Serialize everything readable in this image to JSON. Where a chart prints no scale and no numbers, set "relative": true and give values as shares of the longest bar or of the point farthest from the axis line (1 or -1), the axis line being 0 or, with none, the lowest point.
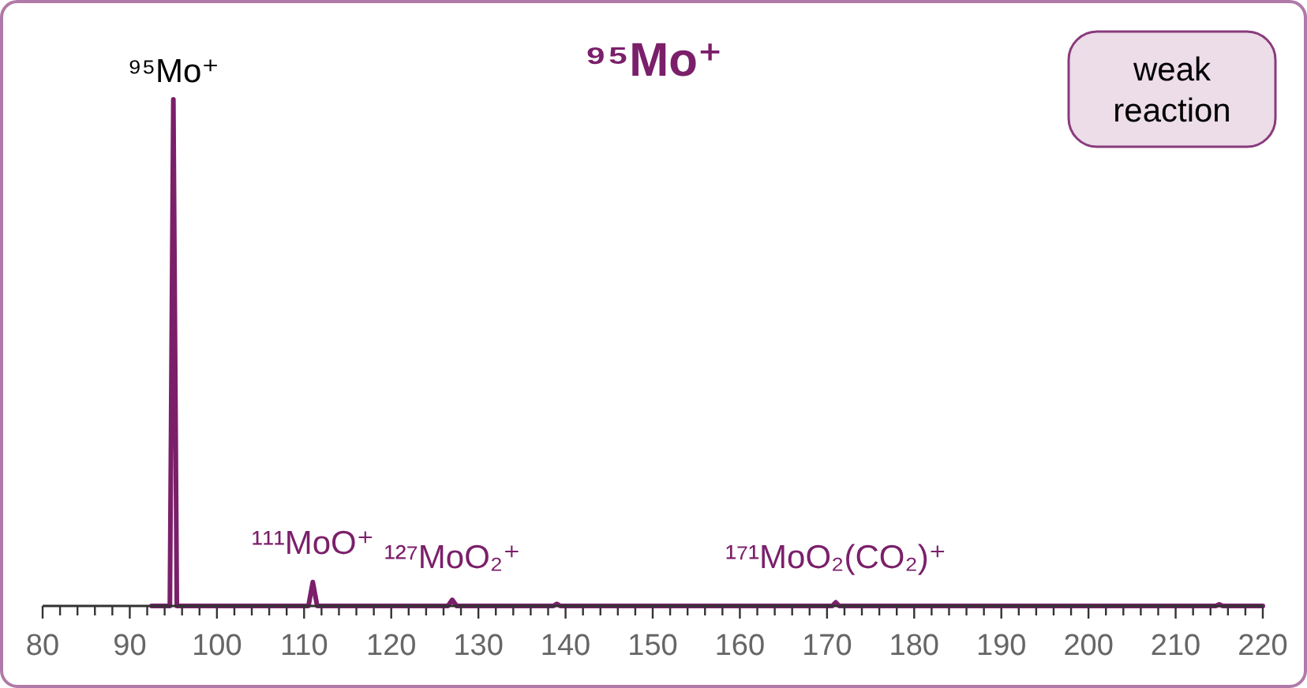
{
  "chart_data": {
    "type": "line",
    "title": "⁹⁵Mo⁺",
    "relative": true,
    "x": [
      92.5,
      94.6,
      95,
      95.4,
      110.5,
      111,
      111.5,
      126.5,
      127,
      127.5,
      138.6,
      139,
      139.4,
      170.6,
      171,
      171.4,
      214.6,
      215,
      215.4,
      220
    ],
    "series": [
      {
        "color": "#7b1f6a",
        "values": [
          0,
          0,
          1,
          0,
          0,
          0.047,
          0,
          0,
          0.012,
          0,
          0,
          0.004,
          0,
          0,
          0.007,
          0,
          0,
          0.003,
          0,
          0
        ]
      }
    ],
    "xlim": [
      80,
      220
    ],
    "xticks": [
      80,
      {
        "value": 82,
        "label": null
      },
      {
        "value": 84,
        "label": null
      },
      {
        "value": 86,
        "label": null
      },
      {
        "value": 88,
        "label": null
      },
      90,
      {
        "value": 92,
        "label": null
      },
      {
        "value": 94,
        "label": null
      },
      {
        "value": 96,
        "label": null
      },
      {
        "value": 98,
        "label": null
      },
      100,
      {
        "value": 102,
        "label": null
      },
      {
        "value": 104,
        "label": null
      },
      {
        "value": 106,
        "label": null
      },
      {
        "value": 108,
        "label": null
      },
      110,
      {
        "value": 112,
        "label": null
      },
      {
        "value": 114,
        "label": null
      },
      {
        "value": 116,
        "label": null
      },
      {
        "value": 118,
        "label": null
      },
      120,
      {
        "value": 122,
        "label": null
      },
      {
        "value": 124,
        "label": null
      },
      {
        "value": 126,
        "label": null
      },
      {
        "value": 128,
        "label": null
      },
      130,
      {
        "value": 132,
        "label": null
      },
      {
        "value": 134,
        "label": null
      },
      {
        "value": 136,
        "label": null
      },
      {
        "value": 138,
        "label": null
      },
      140,
      {
        "value": 142,
        "label": null
      },
      {
        "value": 144,
        "label": null
      },
      {
        "value": 146,
        "label": null
      },
      {
        "value": 148,
        "label": null
      },
      150,
      {
        "value": 152,
        "label": null
      },
      {
        "value": 154,
        "label": null
      },
      {
        "value": 156,
        "label": null
      },
      {
        "value": 158,
        "label": null
      },
      160,
      {
        "value": 162,
        "label": null
      },
      {
        "value": 164,
        "label": null
      },
      {
        "value": 166,
        "label": null
      },
      {
        "value": 168,
        "label": null
      },
      170,
      {
        "value": 172,
        "label": null
      },
      {
        "value": 174,
        "label": null
      },
      {
        "value": 176,
        "label": null
      },
      {
        "value": 178,
        "label": null
      },
      180,
      {
        "value": 182,
        "label": null
      },
      {
        "value": 184,
        "label": null
      },
      {
        "value": 186,
        "label": null
      },
      {
        "value": 188,
        "label": null
      },
      190,
      {
        "value": 192,
        "label": null
      },
      {
        "value": 194,
        "label": null
      },
      {
        "value": 196,
        "label": null
      },
      {
        "value": 198,
        "label": null
      },
      200,
      {
        "value": 202,
        "label": null
      },
      {
        "value": 204,
        "label": null
      },
      {
        "value": 206,
        "label": null
      },
      {
        "value": 208,
        "label": null
      },
      210,
      {
        "value": 212,
        "label": null
      },
      {
        "value": 214,
        "label": null
      },
      {
        "value": 216,
        "label": null
      },
      {
        "value": 218,
        "label": null
      },
      220
    ],
    "tick_labels": "x",
    "marker": "none",
    "line_style": "solid",
    "annotations": [
      {
        "text": "⁹⁵Mo⁺",
        "x": 95,
        "y": 1
      },
      {
        "text": "¹¹¹MoO⁺",
        "x": 111,
        "y": 0.047
      },
      {
        "text": "¹²⁷MoO₂⁺",
        "x": 127,
        "y": 0.012
      },
      {
        "text": "¹⁷¹MoO₂(CO₂)⁺",
        "x": 171,
        "y": 0.007
      },
      "weak reaction"
    ]
  }
}
